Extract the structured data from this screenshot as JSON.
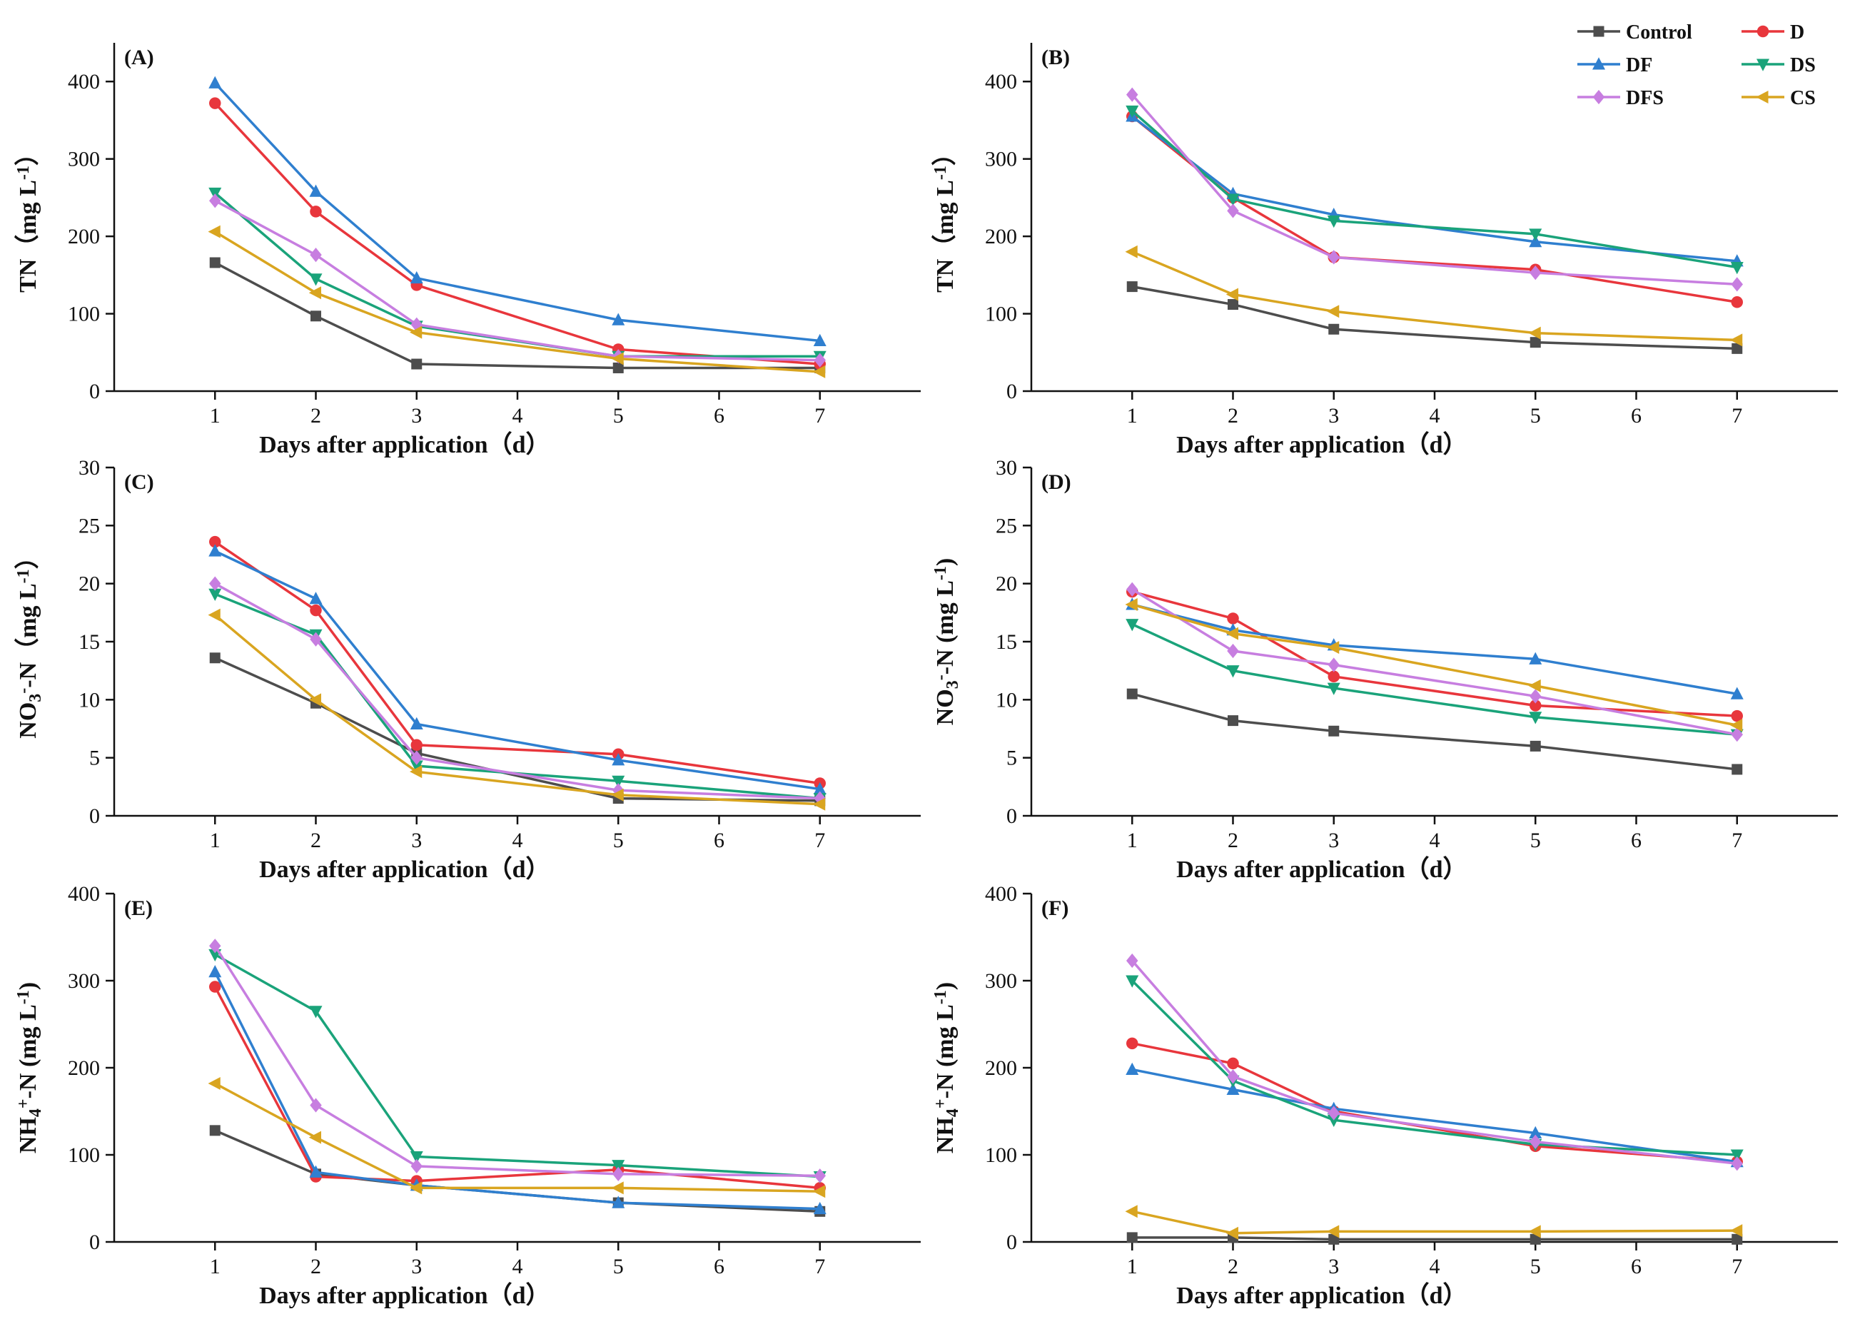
{
  "figure": {
    "series_names": [
      "Control",
      "D",
      "DF",
      "DS",
      "DFS",
      "CS"
    ],
    "series_colors": {
      "Control": "#4d4d4d",
      "D": "#e8363c",
      "DF": "#2f7fcf",
      "DS": "#1aa37a",
      "DFS": "#c77ee0",
      "CS": "#d9a520"
    },
    "series_markers": {
      "Control": "square",
      "D": "circle",
      "DF": "triangle-up",
      "DS": "triangle-down",
      "DFS": "diamond",
      "CS": "triangle-left"
    },
    "legend_location": "top-right"
  },
  "chart_data": [
    {
      "id": "A",
      "panel_label": "(A)",
      "type": "line",
      "x": [
        1,
        2,
        3,
        5,
        7
      ],
      "xticks": [
        "1",
        "2",
        "3",
        "4",
        "5",
        "6",
        "7"
      ],
      "xlim": [
        0,
        8
      ],
      "ylim": [
        0,
        450
      ],
      "yticks": [
        "0",
        "100",
        "200",
        "300",
        "400"
      ],
      "xlabel": "Days after application（d）",
      "ylabel": "TN（mg L-1）",
      "ylabel_parts": [
        "TN（mg L",
        "-1",
        "）"
      ],
      "series": [
        {
          "name": "Control",
          "values": [
            166,
            97,
            35,
            30,
            30
          ]
        },
        {
          "name": "D",
          "values": [
            372,
            232,
            137,
            54,
            35
          ]
        },
        {
          "name": "DF",
          "values": [
            398,
            258,
            146,
            92,
            65
          ]
        },
        {
          "name": "DS",
          "values": [
            256,
            145,
            84,
            45,
            45
          ]
        },
        {
          "name": "DFS",
          "values": [
            246,
            176,
            86,
            45,
            40
          ]
        },
        {
          "name": "CS",
          "values": [
            206,
            127,
            76,
            42,
            25
          ]
        }
      ]
    },
    {
      "id": "B",
      "panel_label": "(B)",
      "type": "line",
      "x": [
        1,
        2,
        3,
        5,
        7
      ],
      "xticks": [
        "1",
        "2",
        "3",
        "4",
        "5",
        "6",
        "7"
      ],
      "xlim": [
        0,
        8
      ],
      "ylim": [
        0,
        450
      ],
      "yticks": [
        "0",
        "100",
        "200",
        "300",
        "400"
      ],
      "xlabel": "Days after application（d）",
      "ylabel": "TN（mg L-1）",
      "ylabel_parts": [
        "TN（mg L",
        "-1",
        "）"
      ],
      "series": [
        {
          "name": "Control",
          "values": [
            135,
            112,
            80,
            63,
            55
          ]
        },
        {
          "name": "D",
          "values": [
            355,
            250,
            173,
            157,
            115
          ]
        },
        {
          "name": "DF",
          "values": [
            355,
            255,
            228,
            193,
            168
          ]
        },
        {
          "name": "DS",
          "values": [
            362,
            248,
            220,
            203,
            160
          ]
        },
        {
          "name": "DFS",
          "values": [
            383,
            233,
            173,
            153,
            138
          ]
        },
        {
          "name": "CS",
          "values": [
            180,
            125,
            103,
            75,
            66
          ]
        }
      ]
    },
    {
      "id": "C",
      "panel_label": "(C)",
      "type": "line",
      "x": [
        1,
        2,
        3,
        5,
        7
      ],
      "xticks": [
        "1",
        "2",
        "3",
        "4",
        "5",
        "6",
        "7"
      ],
      "xlim": [
        0,
        8
      ],
      "ylim": [
        0,
        30
      ],
      "yticks": [
        "0",
        "5",
        "10",
        "15",
        "20",
        "25",
        "30"
      ],
      "xlabel": "Days after application（d）",
      "ylabel": "NO3--N（mg L-1）",
      "ylabel_parts": [
        "NO",
        "3",
        "-",
        "-N（mg L",
        "-1",
        "）"
      ],
      "series": [
        {
          "name": "Control",
          "values": [
            13.6,
            9.7,
            5.4,
            1.5,
            1.3
          ]
        },
        {
          "name": "D",
          "values": [
            23.6,
            17.7,
            6.1,
            5.3,
            2.8
          ]
        },
        {
          "name": "DF",
          "values": [
            22.8,
            18.7,
            7.9,
            4.8,
            2.3
          ]
        },
        {
          "name": "DS",
          "values": [
            19.1,
            15.6,
            4.3,
            3.0,
            1.5
          ]
        },
        {
          "name": "DFS",
          "values": [
            20.0,
            15.2,
            5.0,
            2.2,
            1.5
          ]
        },
        {
          "name": "CS",
          "values": [
            17.3,
            10.0,
            3.8,
            1.8,
            1.0
          ]
        }
      ]
    },
    {
      "id": "D",
      "panel_label": "(D)",
      "type": "line",
      "x": [
        1,
        2,
        3,
        5,
        7
      ],
      "xticks": [
        "1",
        "2",
        "3",
        "4",
        "5",
        "6",
        "7"
      ],
      "xlim": [
        0,
        8
      ],
      "ylim": [
        0,
        30
      ],
      "yticks": [
        "0",
        "5",
        "10",
        "15",
        "20",
        "25",
        "30"
      ],
      "xlabel": "Days after application（d）",
      "ylabel": "NO3--N (mg L-1)",
      "ylabel_parts": [
        "NO",
        "3",
        "-",
        "-N (mg L",
        "-1",
        ")"
      ],
      "series": [
        {
          "name": "Control",
          "values": [
            10.5,
            8.2,
            7.3,
            6.0,
            4.0
          ]
        },
        {
          "name": "D",
          "values": [
            19.3,
            17.0,
            12.0,
            9.5,
            8.6
          ]
        },
        {
          "name": "DF",
          "values": [
            18.2,
            16.0,
            14.7,
            13.5,
            10.5
          ]
        },
        {
          "name": "DS",
          "values": [
            16.5,
            12.5,
            11.0,
            8.5,
            7.0
          ]
        },
        {
          "name": "DFS",
          "values": [
            19.5,
            14.2,
            13.0,
            10.3,
            7.0
          ]
        },
        {
          "name": "CS",
          "values": [
            18.2,
            15.7,
            14.5,
            11.2,
            7.8
          ]
        }
      ]
    },
    {
      "id": "E",
      "panel_label": "(E)",
      "type": "line",
      "x": [
        1,
        2,
        3,
        5,
        7
      ],
      "xticks": [
        "1",
        "2",
        "3",
        "4",
        "5",
        "6",
        "7"
      ],
      "xlim": [
        0,
        8
      ],
      "ylim": [
        0,
        400
      ],
      "yticks": [
        "0",
        "100",
        "200",
        "300",
        "400"
      ],
      "xlabel": "Days after application（d）",
      "ylabel": "NH4+-N (mg L-1)",
      "ylabel_parts": [
        "NH",
        "4",
        "+",
        "-N (mg L",
        "-1",
        ")"
      ],
      "series": [
        {
          "name": "Control",
          "values": [
            128,
            78,
            65,
            45,
            35
          ]
        },
        {
          "name": "D",
          "values": [
            293,
            75,
            70,
            83,
            62
          ]
        },
        {
          "name": "DF",
          "values": [
            310,
            80,
            65,
            45,
            38
          ]
        },
        {
          "name": "DS",
          "values": [
            330,
            265,
            98,
            88,
            75
          ]
        },
        {
          "name": "DFS",
          "values": [
            340,
            157,
            87,
            78,
            76
          ]
        },
        {
          "name": "CS",
          "values": [
            182,
            120,
            62,
            62,
            58
          ]
        }
      ]
    },
    {
      "id": "F",
      "panel_label": "(F)",
      "type": "line",
      "x": [
        1,
        2,
        3,
        5,
        7
      ],
      "xticks": [
        "1",
        "2",
        "3",
        "4",
        "5",
        "6",
        "7"
      ],
      "xlim": [
        0,
        8
      ],
      "ylim": [
        0,
        400
      ],
      "yticks": [
        "0",
        "100",
        "200",
        "300",
        "400"
      ],
      "xlabel": "Days after application（d）",
      "ylabel": "NH4+-N (mg L-1)",
      "ylabel_parts": [
        "NH",
        "4",
        "+",
        "-N (mg L",
        "-1",
        ")"
      ],
      "series": [
        {
          "name": "Control",
          "values": [
            5,
            5,
            3,
            3,
            3
          ]
        },
        {
          "name": "D",
          "values": [
            228,
            205,
            150,
            110,
            92
          ]
        },
        {
          "name": "DF",
          "values": [
            198,
            175,
            153,
            125,
            92
          ]
        },
        {
          "name": "DS",
          "values": [
            300,
            185,
            140,
            112,
            100
          ]
        },
        {
          "name": "DFS",
          "values": [
            323,
            190,
            148,
            115,
            90
          ]
        },
        {
          "name": "CS",
          "values": [
            35,
            10,
            12,
            12,
            13
          ]
        }
      ]
    }
  ]
}
